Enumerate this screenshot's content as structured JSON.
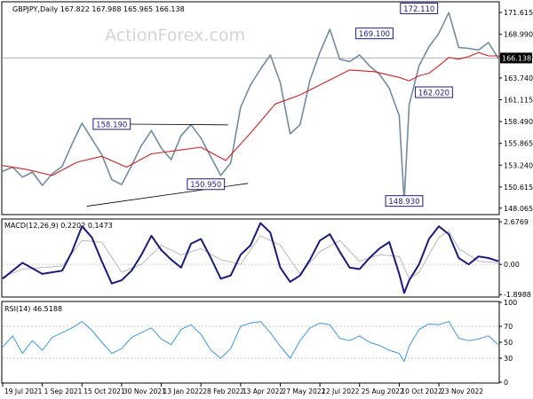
{
  "watermark": "ActionForex.com",
  "chart_data": [
    {
      "type": "line",
      "panel": "price",
      "header": "GBPJPY,Daily  167.822 167.988 165.965 166.138",
      "ylim": [
        147.4,
        172.8
      ],
      "yticks": [
        "171.615",
        "168.990",
        "166.365",
        "163.740",
        "161.115",
        "158.490",
        "155.865",
        "153.240",
        "150.615",
        "148.065"
      ],
      "ytick_values": [
        171.615,
        168.99,
        166.365,
        163.74,
        161.115,
        158.49,
        155.865,
        153.24,
        150.615,
        148.065
      ],
      "current_price": "166.138",
      "current_price_value": 166.138,
      "xlim": [
        0,
        100
      ],
      "series": [
        {
          "color": "#6f8ca0",
          "x": [
            0,
            2,
            4,
            6,
            8,
            10,
            12,
            14,
            16,
            18,
            20,
            22,
            24,
            26,
            28,
            30,
            32,
            34,
            36,
            38,
            40,
            42,
            44,
            46,
            48,
            50,
            52,
            54,
            56,
            58,
            60,
            62,
            64,
            66,
            68,
            70,
            72,
            74,
            76,
            78,
            80,
            81,
            82,
            84,
            86,
            88,
            90,
            92,
            94,
            96,
            98,
            100
          ],
          "y": [
            152.5,
            153.0,
            151.8,
            152.4,
            150.8,
            152.2,
            153.1,
            155.8,
            158.3,
            156.4,
            154.5,
            151.5,
            150.9,
            153.2,
            155.6,
            157.4,
            155.3,
            153.9,
            156.8,
            158.1,
            156.5,
            154.2,
            152.0,
            153.5,
            160.2,
            162.9,
            164.8,
            166.5,
            163.2,
            157.0,
            158.1,
            163.5,
            166.8,
            169.6,
            166.0,
            165.7,
            166.5,
            165.2,
            164.2,
            162.5,
            159.2,
            148.9,
            160.5,
            165.2,
            167.5,
            169.1,
            171.6,
            167.4,
            167.3,
            167.1,
            168.0,
            166.1
          ]
        },
        {
          "color": "#d62020",
          "x": [
            0,
            5,
            10,
            15,
            20,
            25,
            30,
            35,
            40,
            45,
            50,
            55,
            60,
            65,
            70,
            75,
            80,
            82,
            84,
            86,
            88,
            90,
            92,
            94,
            96,
            98,
            100
          ],
          "y": [
            153.2,
            152.7,
            152.0,
            153.6,
            154.3,
            153.0,
            154.6,
            155.0,
            155.4,
            153.8,
            157.1,
            160.6,
            161.7,
            163.2,
            164.7,
            164.5,
            163.8,
            163.4,
            164.0,
            164.3,
            165.2,
            166.2,
            166.0,
            166.3,
            166.8,
            166.4,
            166.4
          ]
        }
      ],
      "annotations": [
        {
          "text": "158.190",
          "x": 22,
          "y": 158.19
        },
        {
          "text": "150.950",
          "x": 41,
          "y": 150.95
        },
        {
          "text": "169.100",
          "x": 75,
          "y": 169.1
        },
        {
          "text": "172.110",
          "x": 84,
          "y": 172.11
        },
        {
          "text": "162.020",
          "x": 87,
          "y": 162.02
        },
        {
          "text": "148.930",
          "x": 81,
          "y": 148.93
        }
      ],
      "trendlines": [
        {
          "color": "#000000",
          "x": [
            22,
            45.5
          ],
          "y": [
            158.19,
            158.09
          ]
        },
        {
          "color": "#000000",
          "x": [
            17,
            49.5
          ],
          "y": [
            148.3,
            151.05
          ]
        }
      ],
      "horizontal_line": {
        "color": "#b0b0b0",
        "y": 166.138
      }
    },
    {
      "type": "line",
      "panel": "macd",
      "header": "MACD(12,26,9) 0.2202 0.1473",
      "ylim": [
        -2.0,
        2.8
      ],
      "yticks": [
        "2.6769",
        "0.00",
        "-1.8988"
      ],
      "ytick_values": [
        2.6769,
        0.0,
        -1.8988
      ],
      "xlim": [
        0,
        100
      ],
      "series": [
        {
          "color": "#1a1a80",
          "x": [
            0,
            4,
            8,
            12,
            14,
            16,
            18,
            20,
            22,
            24,
            26,
            28,
            30,
            32,
            34,
            36,
            38,
            40,
            42,
            44,
            46,
            48,
            50,
            52,
            54,
            56,
            58,
            60,
            62,
            64,
            66,
            68,
            70,
            72,
            74,
            76,
            78,
            80,
            81,
            82,
            84,
            86,
            88,
            90,
            92,
            94,
            96,
            98,
            100
          ],
          "y": [
            -0.9,
            0.1,
            -0.6,
            -0.4,
            0.8,
            2.4,
            1.7,
            0.2,
            -1.2,
            -1.0,
            -0.4,
            0.6,
            1.8,
            0.9,
            0.3,
            -0.2,
            1.3,
            1.6,
            0.4,
            -0.9,
            -0.7,
            0.6,
            1.2,
            2.6,
            2.0,
            -0.2,
            -1.1,
            -0.7,
            0.3,
            1.5,
            1.9,
            0.8,
            -0.2,
            -0.3,
            0.4,
            1.0,
            1.4,
            -0.6,
            -1.8,
            -1.0,
            0.0,
            1.6,
            2.4,
            1.9,
            0.4,
            0.0,
            0.5,
            0.4,
            0.2
          ]
        },
        {
          "color": "#b9b9b9",
          "x": [
            0,
            4,
            8,
            12,
            16,
            20,
            24,
            28,
            32,
            36,
            40,
            44,
            48,
            52,
            56,
            60,
            64,
            68,
            72,
            76,
            80,
            82,
            84,
            86,
            88,
            90,
            92,
            96,
            100
          ],
          "y": [
            -0.8,
            -0.3,
            -0.2,
            -0.1,
            1.5,
            1.4,
            -0.5,
            0.0,
            1.2,
            0.6,
            1.0,
            0.3,
            0.0,
            1.8,
            1.2,
            -0.6,
            0.8,
            1.5,
            0.2,
            0.6,
            0.5,
            -0.9,
            -0.5,
            0.6,
            1.7,
            2.1,
            1.0,
            0.2,
            0.1
          ]
        }
      ]
    },
    {
      "type": "line",
      "panel": "rsi",
      "header": "RSI(14) 46.5188",
      "ylim": [
        0,
        100
      ],
      "yticks": [
        "100",
        "70",
        "50",
        "30",
        "0"
      ],
      "ytick_values": [
        100,
        70,
        50,
        30,
        0
      ],
      "levels": [
        70,
        30
      ],
      "xlim": [
        0,
        100
      ],
      "series": [
        {
          "color": "#3a97e0",
          "x": [
            0,
            2,
            4,
            6,
            8,
            10,
            12,
            14,
            16,
            18,
            20,
            22,
            24,
            26,
            28,
            30,
            32,
            34,
            36,
            38,
            40,
            42,
            44,
            46,
            48,
            50,
            52,
            54,
            56,
            58,
            60,
            62,
            64,
            66,
            68,
            70,
            72,
            74,
            76,
            78,
            80,
            81,
            82,
            84,
            86,
            88,
            90,
            92,
            94,
            96,
            98,
            100
          ],
          "y": [
            44,
            58,
            36,
            52,
            40,
            56,
            62,
            68,
            76,
            65,
            50,
            36,
            42,
            56,
            62,
            68,
            54,
            47,
            66,
            72,
            60,
            40,
            30,
            42,
            70,
            74,
            76,
            62,
            45,
            30,
            52,
            68,
            74,
            72,
            55,
            52,
            58,
            50,
            46,
            40,
            36,
            26,
            45,
            66,
            73,
            72,
            76,
            55,
            52,
            54,
            58,
            47
          ]
        }
      ]
    }
  ],
  "x_axis": {
    "labels": [
      "19 Jul 2021",
      "1 Sep 2021",
      "15 Oct 2021",
      "30 Nov 2021",
      "13 Jan 2022",
      "28 Feb 2022",
      "13 Apr 2022",
      "27 May 2022",
      "12 Jul 2022",
      "25 Aug 2022",
      "10 Oct 2022",
      "23 Nov 2022"
    ],
    "positions": [
      0,
      8,
      16,
      24,
      32,
      40,
      48,
      56,
      64,
      72,
      80,
      88
    ]
  }
}
